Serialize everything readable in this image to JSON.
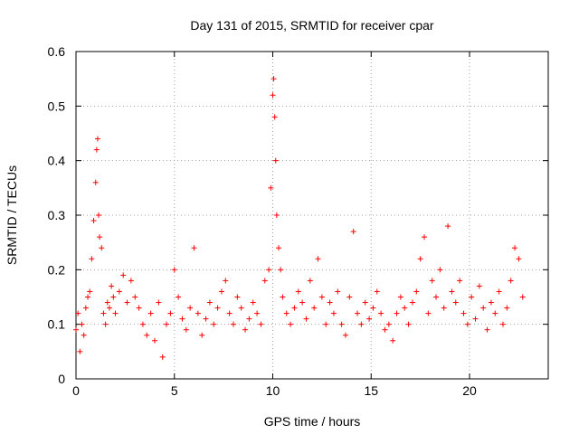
{
  "chart_data": {
    "type": "scatter",
    "title": "Day 131 of 2015, SRMTID for receiver cpar",
    "xlabel": "GPS time / hours",
    "ylabel": "SRMTID / TECUs",
    "xlim": [
      0,
      24
    ],
    "ylim": [
      0,
      0.6
    ],
    "x_ticks": [
      0,
      5,
      10,
      15,
      20
    ],
    "y_ticks": [
      0,
      0.1,
      0.2,
      0.3,
      0.4,
      0.5,
      0.6
    ],
    "x_tick_labels": [
      "0",
      "5",
      "10",
      "15",
      "20"
    ],
    "y_tick_labels": [
      "0",
      "0.1",
      "0.2",
      "0.3",
      "0.4",
      "0.5",
      "0.6"
    ],
    "grid": true,
    "marker": "+",
    "marker_color": "#ff0000",
    "series": [
      {
        "name": "SRMTID",
        "x": [
          0.0,
          0.1,
          0.2,
          0.3,
          0.4,
          0.5,
          0.6,
          0.7,
          0.8,
          0.9,
          1.0,
          1.05,
          1.1,
          1.15,
          1.2,
          1.3,
          1.4,
          1.5,
          1.6,
          1.7,
          1.8,
          1.9,
          2.0,
          2.2,
          2.4,
          2.6,
          2.8,
          3.0,
          3.2,
          3.4,
          3.6,
          3.8,
          4.0,
          4.2,
          4.4,
          4.6,
          4.8,
          5.0,
          5.2,
          5.4,
          5.6,
          5.8,
          6.0,
          6.2,
          6.4,
          6.6,
          6.8,
          7.0,
          7.2,
          7.4,
          7.6,
          7.8,
          8.0,
          8.2,
          8.4,
          8.6,
          8.8,
          9.0,
          9.2,
          9.4,
          9.6,
          9.8,
          9.9,
          10.0,
          10.05,
          10.1,
          10.15,
          10.2,
          10.3,
          10.4,
          10.5,
          10.7,
          10.9,
          11.1,
          11.3,
          11.5,
          11.7,
          11.9,
          12.1,
          12.3,
          12.5,
          12.7,
          12.9,
          13.1,
          13.3,
          13.5,
          13.7,
          13.9,
          14.1,
          14.3,
          14.5,
          14.7,
          14.9,
          15.1,
          15.3,
          15.5,
          15.7,
          15.9,
          16.1,
          16.3,
          16.5,
          16.7,
          16.9,
          17.1,
          17.3,
          17.5,
          17.7,
          17.9,
          18.1,
          18.3,
          18.5,
          18.7,
          18.9,
          19.1,
          19.3,
          19.5,
          19.7,
          19.9,
          20.1,
          20.3,
          20.5,
          20.7,
          20.9,
          21.1,
          21.3,
          21.5,
          21.7,
          21.9,
          22.1,
          22.3,
          22.5,
          22.7
        ],
        "y": [
          0.09,
          0.12,
          0.05,
          0.1,
          0.08,
          0.13,
          0.15,
          0.16,
          0.22,
          0.29,
          0.36,
          0.42,
          0.44,
          0.3,
          0.26,
          0.24,
          0.12,
          0.1,
          0.14,
          0.13,
          0.17,
          0.15,
          0.12,
          0.16,
          0.19,
          0.14,
          0.18,
          0.15,
          0.13,
          0.1,
          0.08,
          0.12,
          0.07,
          0.14,
          0.04,
          0.1,
          0.12,
          0.2,
          0.15,
          0.11,
          0.09,
          0.13,
          0.24,
          0.12,
          0.08,
          0.11,
          0.14,
          0.1,
          0.13,
          0.16,
          0.18,
          0.12,
          0.1,
          0.15,
          0.13,
          0.09,
          0.11,
          0.14,
          0.12,
          0.1,
          0.18,
          0.2,
          0.35,
          0.52,
          0.55,
          0.48,
          0.4,
          0.3,
          0.24,
          0.2,
          0.15,
          0.12,
          0.1,
          0.13,
          0.16,
          0.14,
          0.11,
          0.18,
          0.13,
          0.22,
          0.15,
          0.1,
          0.14,
          0.12,
          0.16,
          0.1,
          0.08,
          0.15,
          0.27,
          0.12,
          0.1,
          0.14,
          0.11,
          0.13,
          0.16,
          0.12,
          0.09,
          0.1,
          0.07,
          0.12,
          0.15,
          0.13,
          0.1,
          0.14,
          0.16,
          0.22,
          0.26,
          0.12,
          0.18,
          0.15,
          0.2,
          0.13,
          0.28,
          0.16,
          0.14,
          0.18,
          0.12,
          0.1,
          0.15,
          0.11,
          0.17,
          0.13,
          0.09,
          0.14,
          0.12,
          0.16,
          0.1,
          0.13,
          0.18,
          0.24,
          0.22,
          0.15
        ]
      }
    ]
  }
}
